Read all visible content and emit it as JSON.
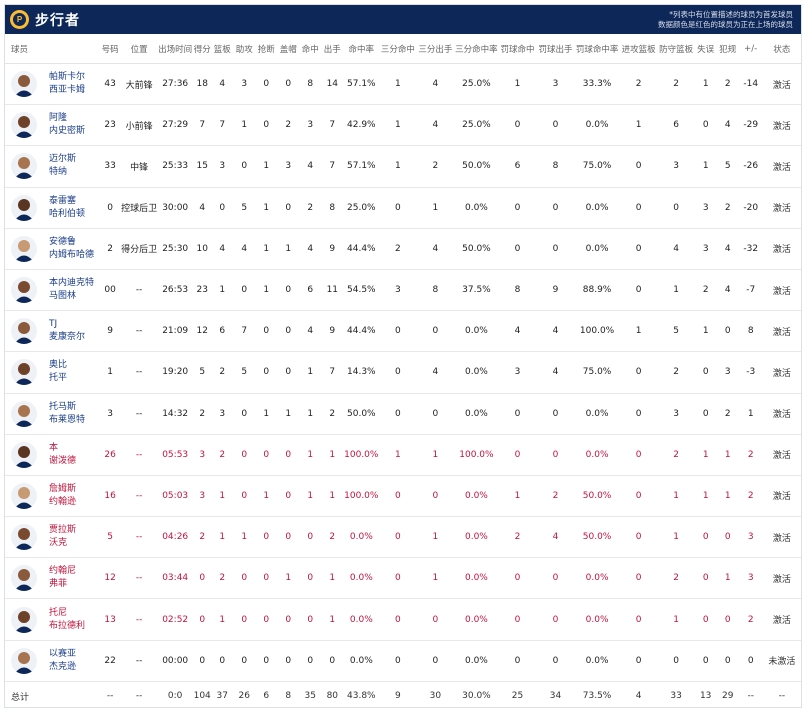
{
  "header": {
    "team_name": "步行者",
    "logo_letter": "P",
    "note_line1": "*列表中有位置描述的球员为首发球员",
    "note_line2": "数据颜色是红色的球员为正在上场的球员"
  },
  "columns": [
    "球员",
    "号码",
    "位置",
    "出场时间",
    "得分",
    "篮板",
    "助攻",
    "抢断",
    "盖帽",
    "命中",
    "出手",
    "命中率",
    "三分命中",
    "三分出手",
    "三分命中率",
    "罚球命中",
    "罚球出手",
    "罚球命中率",
    "进攻篮板",
    "防守篮板",
    "失误",
    "犯规",
    "+/-",
    "状态"
  ],
  "players": [
    {
      "name1": "帕斯卡尔",
      "name2": "西亚卡姆",
      "number": "43",
      "position": "大前锋",
      "min": "27:36",
      "pts": "18",
      "reb": "4",
      "ast": "3",
      "stl": "0",
      "blk": "0",
      "fgm": "8",
      "fga": "14",
      "fgp": "57.1%",
      "tpm": "1",
      "tpa": "4",
      "tpp": "25.0%",
      "ftm": "1",
      "fta": "3",
      "ftp": "33.3%",
      "oreb": "2",
      "dreb": "2",
      "tov": "1",
      "pf": "2",
      "pm": "-14",
      "status": "激活",
      "oncourt": false
    },
    {
      "name1": "阿隆",
      "name2": "内史密斯",
      "number": "23",
      "position": "小前锋",
      "min": "27:29",
      "pts": "7",
      "reb": "7",
      "ast": "1",
      "stl": "0",
      "blk": "2",
      "fgm": "3",
      "fga": "7",
      "fgp": "42.9%",
      "tpm": "1",
      "tpa": "4",
      "tpp": "25.0%",
      "ftm": "0",
      "fta": "0",
      "ftp": "0.0%",
      "oreb": "1",
      "dreb": "6",
      "tov": "0",
      "pf": "4",
      "pm": "-29",
      "status": "激活",
      "oncourt": false
    },
    {
      "name1": "迈尔斯",
      "name2": "特纳",
      "number": "33",
      "position": "中锋",
      "min": "25:33",
      "pts": "15",
      "reb": "3",
      "ast": "0",
      "stl": "1",
      "blk": "3",
      "fgm": "4",
      "fga": "7",
      "fgp": "57.1%",
      "tpm": "1",
      "tpa": "2",
      "tpp": "50.0%",
      "ftm": "6",
      "fta": "8",
      "ftp": "75.0%",
      "oreb": "0",
      "dreb": "3",
      "tov": "1",
      "pf": "5",
      "pm": "-26",
      "status": "激活",
      "oncourt": false
    },
    {
      "name1": "泰雷塞",
      "name2": "哈利伯顿",
      "number": "0",
      "position": "控球后卫",
      "min": "30:00",
      "pts": "4",
      "reb": "0",
      "ast": "5",
      "stl": "1",
      "blk": "0",
      "fgm": "2",
      "fga": "8",
      "fgp": "25.0%",
      "tpm": "0",
      "tpa": "1",
      "tpp": "0.0%",
      "ftm": "0",
      "fta": "0",
      "ftp": "0.0%",
      "oreb": "0",
      "dreb": "0",
      "tov": "3",
      "pf": "2",
      "pm": "-20",
      "status": "激活",
      "oncourt": false
    },
    {
      "name1": "安德鲁",
      "name2": "内姆布哈德",
      "number": "2",
      "position": "得分后卫",
      "min": "25:30",
      "pts": "10",
      "reb": "4",
      "ast": "4",
      "stl": "1",
      "blk": "1",
      "fgm": "4",
      "fga": "9",
      "fgp": "44.4%",
      "tpm": "2",
      "tpa": "4",
      "tpp": "50.0%",
      "ftm": "0",
      "fta": "0",
      "ftp": "0.0%",
      "oreb": "0",
      "dreb": "4",
      "tov": "3",
      "pf": "4",
      "pm": "-32",
      "status": "激活",
      "oncourt": false
    },
    {
      "name1": "本内迪克特",
      "name2": "马图林",
      "number": "00",
      "position": "--",
      "min": "26:53",
      "pts": "23",
      "reb": "1",
      "ast": "0",
      "stl": "1",
      "blk": "0",
      "fgm": "6",
      "fga": "11",
      "fgp": "54.5%",
      "tpm": "3",
      "tpa": "8",
      "tpp": "37.5%",
      "ftm": "8",
      "fta": "9",
      "ftp": "88.9%",
      "oreb": "0",
      "dreb": "1",
      "tov": "2",
      "pf": "4",
      "pm": "-7",
      "status": "激活",
      "oncourt": false
    },
    {
      "name1": "TJ",
      "name2": "麦康奈尔",
      "number": "9",
      "position": "--",
      "min": "21:09",
      "pts": "12",
      "reb": "6",
      "ast": "7",
      "stl": "0",
      "blk": "0",
      "fgm": "4",
      "fga": "9",
      "fgp": "44.4%",
      "tpm": "0",
      "tpa": "0",
      "tpp": "0.0%",
      "ftm": "4",
      "fta": "4",
      "ftp": "100.0%",
      "oreb": "1",
      "dreb": "5",
      "tov": "1",
      "pf": "0",
      "pm": "8",
      "status": "激活",
      "oncourt": false
    },
    {
      "name1": "奥比",
      "name2": "托平",
      "number": "1",
      "position": "--",
      "min": "19:20",
      "pts": "5",
      "reb": "2",
      "ast": "5",
      "stl": "0",
      "blk": "0",
      "fgm": "1",
      "fga": "7",
      "fgp": "14.3%",
      "tpm": "0",
      "tpa": "4",
      "tpp": "0.0%",
      "ftm": "3",
      "fta": "4",
      "ftp": "75.0%",
      "oreb": "0",
      "dreb": "2",
      "tov": "0",
      "pf": "3",
      "pm": "-3",
      "status": "激活",
      "oncourt": false
    },
    {
      "name1": "托马斯",
      "name2": "布莱恩特",
      "number": "3",
      "position": "--",
      "min": "14:32",
      "pts": "2",
      "reb": "3",
      "ast": "0",
      "stl": "1",
      "blk": "1",
      "fgm": "1",
      "fga": "2",
      "fgp": "50.0%",
      "tpm": "0",
      "tpa": "0",
      "tpp": "0.0%",
      "ftm": "0",
      "fta": "0",
      "ftp": "0.0%",
      "oreb": "0",
      "dreb": "3",
      "tov": "0",
      "pf": "2",
      "pm": "1",
      "status": "激活",
      "oncourt": false
    },
    {
      "name1": "本",
      "name2": "谢泼德",
      "number": "26",
      "position": "--",
      "min": "05:53",
      "pts": "3",
      "reb": "2",
      "ast": "0",
      "stl": "0",
      "blk": "0",
      "fgm": "1",
      "fga": "1",
      "fgp": "100.0%",
      "tpm": "1",
      "tpa": "1",
      "tpp": "100.0%",
      "ftm": "0",
      "fta": "0",
      "ftp": "0.0%",
      "oreb": "0",
      "dreb": "2",
      "tov": "1",
      "pf": "1",
      "pm": "2",
      "status": "激活",
      "oncourt": true
    },
    {
      "name1": "詹姆斯",
      "name2": "约翰逊",
      "number": "16",
      "position": "--",
      "min": "05:03",
      "pts": "3",
      "reb": "1",
      "ast": "0",
      "stl": "1",
      "blk": "0",
      "fgm": "1",
      "fga": "1",
      "fgp": "100.0%",
      "tpm": "0",
      "tpa": "0",
      "tpp": "0.0%",
      "ftm": "1",
      "fta": "2",
      "ftp": "50.0%",
      "oreb": "0",
      "dreb": "1",
      "tov": "1",
      "pf": "1",
      "pm": "2",
      "status": "激活",
      "oncourt": true
    },
    {
      "name1": "贾拉斯",
      "name2": "沃克",
      "number": "5",
      "position": "--",
      "min": "04:26",
      "pts": "2",
      "reb": "1",
      "ast": "1",
      "stl": "0",
      "blk": "0",
      "fgm": "0",
      "fga": "2",
      "fgp": "0.0%",
      "tpm": "0",
      "tpa": "1",
      "tpp": "0.0%",
      "ftm": "2",
      "fta": "4",
      "ftp": "50.0%",
      "oreb": "0",
      "dreb": "1",
      "tov": "0",
      "pf": "0",
      "pm": "3",
      "status": "激活",
      "oncourt": true
    },
    {
      "name1": "约翰尼",
      "name2": "弗菲",
      "number": "12",
      "position": "--",
      "min": "03:44",
      "pts": "0",
      "reb": "2",
      "ast": "0",
      "stl": "0",
      "blk": "1",
      "fgm": "0",
      "fga": "1",
      "fgp": "0.0%",
      "tpm": "0",
      "tpa": "1",
      "tpp": "0.0%",
      "ftm": "0",
      "fta": "0",
      "ftp": "0.0%",
      "oreb": "0",
      "dreb": "2",
      "tov": "0",
      "pf": "1",
      "pm": "3",
      "status": "激活",
      "oncourt": true
    },
    {
      "name1": "托尼",
      "name2": "布拉德利",
      "number": "13",
      "position": "--",
      "min": "02:52",
      "pts": "0",
      "reb": "1",
      "ast": "0",
      "stl": "0",
      "blk": "0",
      "fgm": "0",
      "fga": "1",
      "fgp": "0.0%",
      "tpm": "0",
      "tpa": "0",
      "tpp": "0.0%",
      "ftm": "0",
      "fta": "0",
      "ftp": "0.0%",
      "oreb": "0",
      "dreb": "1",
      "tov": "0",
      "pf": "0",
      "pm": "2",
      "status": "激活",
      "oncourt": true
    },
    {
      "name1": "以赛亚",
      "name2": "杰克逊",
      "number": "22",
      "position": "--",
      "min": "00:00",
      "pts": "0",
      "reb": "0",
      "ast": "0",
      "stl": "0",
      "blk": "0",
      "fgm": "0",
      "fga": "0",
      "fgp": "0.0%",
      "tpm": "0",
      "tpa": "0",
      "tpp": "0.0%",
      "ftm": "0",
      "fta": "0",
      "ftp": "0.0%",
      "oreb": "0",
      "dreb": "0",
      "tov": "0",
      "pf": "0",
      "pm": "0",
      "status": "未激活",
      "oncourt": false
    }
  ],
  "totals": {
    "label": "总计",
    "number": "--",
    "position": "--",
    "min": "0:0",
    "pts": "104",
    "reb": "37",
    "ast": "26",
    "stl": "6",
    "blk": "8",
    "fgm": "35",
    "fga": "80",
    "fgp": "43.8%",
    "tpm": "9",
    "tpa": "30",
    "tpp": "30.0%",
    "ftm": "25",
    "fta": "34",
    "ftp": "73.5%",
    "oreb": "4",
    "dreb": "33",
    "tov": "13",
    "pf": "29",
    "pm": "--",
    "status": "--"
  },
  "colors": {
    "header_bg": "#0c2758",
    "accent": "#fdbb30",
    "link": "#1a3d8a",
    "oncourt": "#c0143c"
  }
}
